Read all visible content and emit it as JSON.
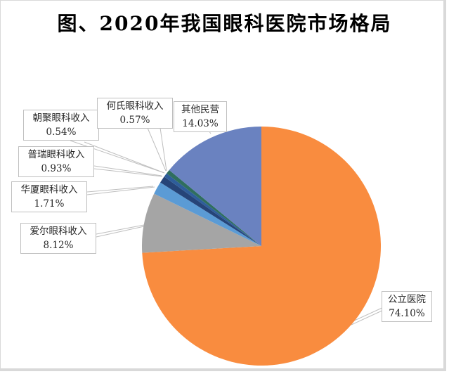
{
  "title": "图、2020年我国眼科医院市场格局",
  "chart_data": {
    "type": "pie",
    "title": "图、2020年我国眼科医院市场格局",
    "start_angle_deg": 90,
    "direction": "clockwise",
    "slices": [
      {
        "label": "公立医院",
        "value": 74.1,
        "display": "74.10%",
        "color": "#f98c3f"
      },
      {
        "label": "爱尔眼科收入",
        "value": 8.12,
        "display": "8.12%",
        "color": "#a5a5a5"
      },
      {
        "label": "华厦眼科收入",
        "value": 1.71,
        "display": "1.71%",
        "color": "#5b9bd5"
      },
      {
        "label": "普瑞眼科收入",
        "value": 0.93,
        "display": "0.93%",
        "color": "#264478"
      },
      {
        "label": "朝聚眼科收入",
        "value": 0.54,
        "display": "0.54%",
        "color": "#2e5d9a"
      },
      {
        "label": "何氏眼科收入",
        "value": 0.57,
        "display": "0.57%",
        "color": "#2f6e5e"
      },
      {
        "label": "其他民营",
        "value": 14.03,
        "display": "14.03%",
        "color": "#6a82c0"
      }
    ],
    "legend": "none (callout data labels)"
  },
  "labels": {
    "public": {
      "name": "公立医院",
      "pct": "74.10%"
    },
    "aier": {
      "name": "爱尔眼科收入",
      "pct": "8.12%"
    },
    "huaxia": {
      "name": "华厦眼科收入",
      "pct": "1.71%"
    },
    "puri": {
      "name": "普瑞眼科收入",
      "pct": "0.93%"
    },
    "chaoju": {
      "name": "朝聚眼科收入",
      "pct": "0.54%"
    },
    "heshi": {
      "name": "何氏眼科收入",
      "pct": "0.57%"
    },
    "other": {
      "name": "其他民营",
      "pct": "14.03%"
    }
  }
}
